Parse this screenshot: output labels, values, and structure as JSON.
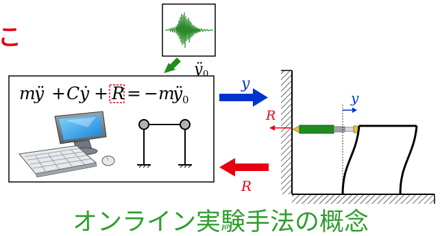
{
  "corner_fragment": "こ",
  "equation": {
    "term_m": "m",
    "term_m_var": "ÿ",
    "plus1": "+",
    "term_c": "C",
    "term_c_var": "ẏ",
    "plus2": "+",
    "term_r": "R",
    "equals": "=",
    "rhs_coef": "−m",
    "rhs_var": "ÿ",
    "rhs_sub": "0"
  },
  "ground_input": {
    "symbol": "ÿ",
    "subscript": "0"
  },
  "arrow_labels": {
    "to_specimen": "y",
    "from_specimen": "R"
  },
  "specimen_labels": {
    "reaction": "R",
    "displacement": "y"
  },
  "caption": "オンライン実験手法の概念",
  "colors": {
    "red": "#e60012",
    "blue": "#0033cc",
    "green": "#1e8c1e",
    "caption_green": "#2e9e2e",
    "wave": "#2a8a2a"
  }
}
